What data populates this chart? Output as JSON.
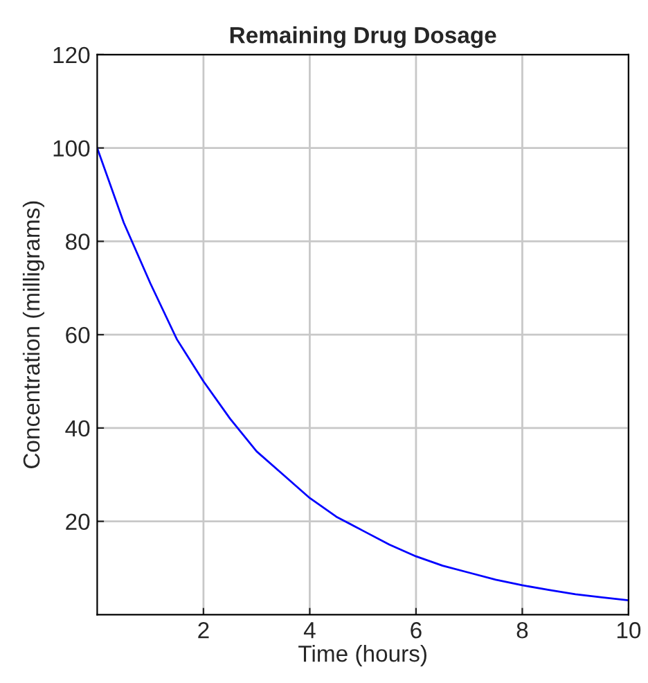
{
  "chart_data": {
    "type": "line",
    "title": "Remaining Drug Dosage",
    "xlabel": "Time (hours)",
    "ylabel": "Concentration (milligrams)",
    "x": [
      0,
      0.5,
      1,
      1.5,
      2,
      2.5,
      3,
      3.5,
      4,
      4.5,
      5,
      5.5,
      6,
      6.5,
      7,
      7.5,
      8,
      8.5,
      9,
      9.5,
      10
    ],
    "series": [
      {
        "color": "#0000ff",
        "values": [
          100,
          84,
          71,
          59,
          50,
          42,
          35,
          30,
          25,
          21,
          18,
          15,
          12.5,
          10.5,
          9,
          7.5,
          6.3,
          5.3,
          4.4,
          3.7,
          3.1
        ]
      }
    ],
    "xlim": [
      0,
      10
    ],
    "ylim": [
      0,
      120
    ],
    "xticks": [
      2,
      4,
      6,
      8,
      10
    ],
    "yticks": [
      20,
      40,
      60,
      80,
      100,
      120
    ],
    "grid": true,
    "marker": "none",
    "line_style": "solid"
  }
}
